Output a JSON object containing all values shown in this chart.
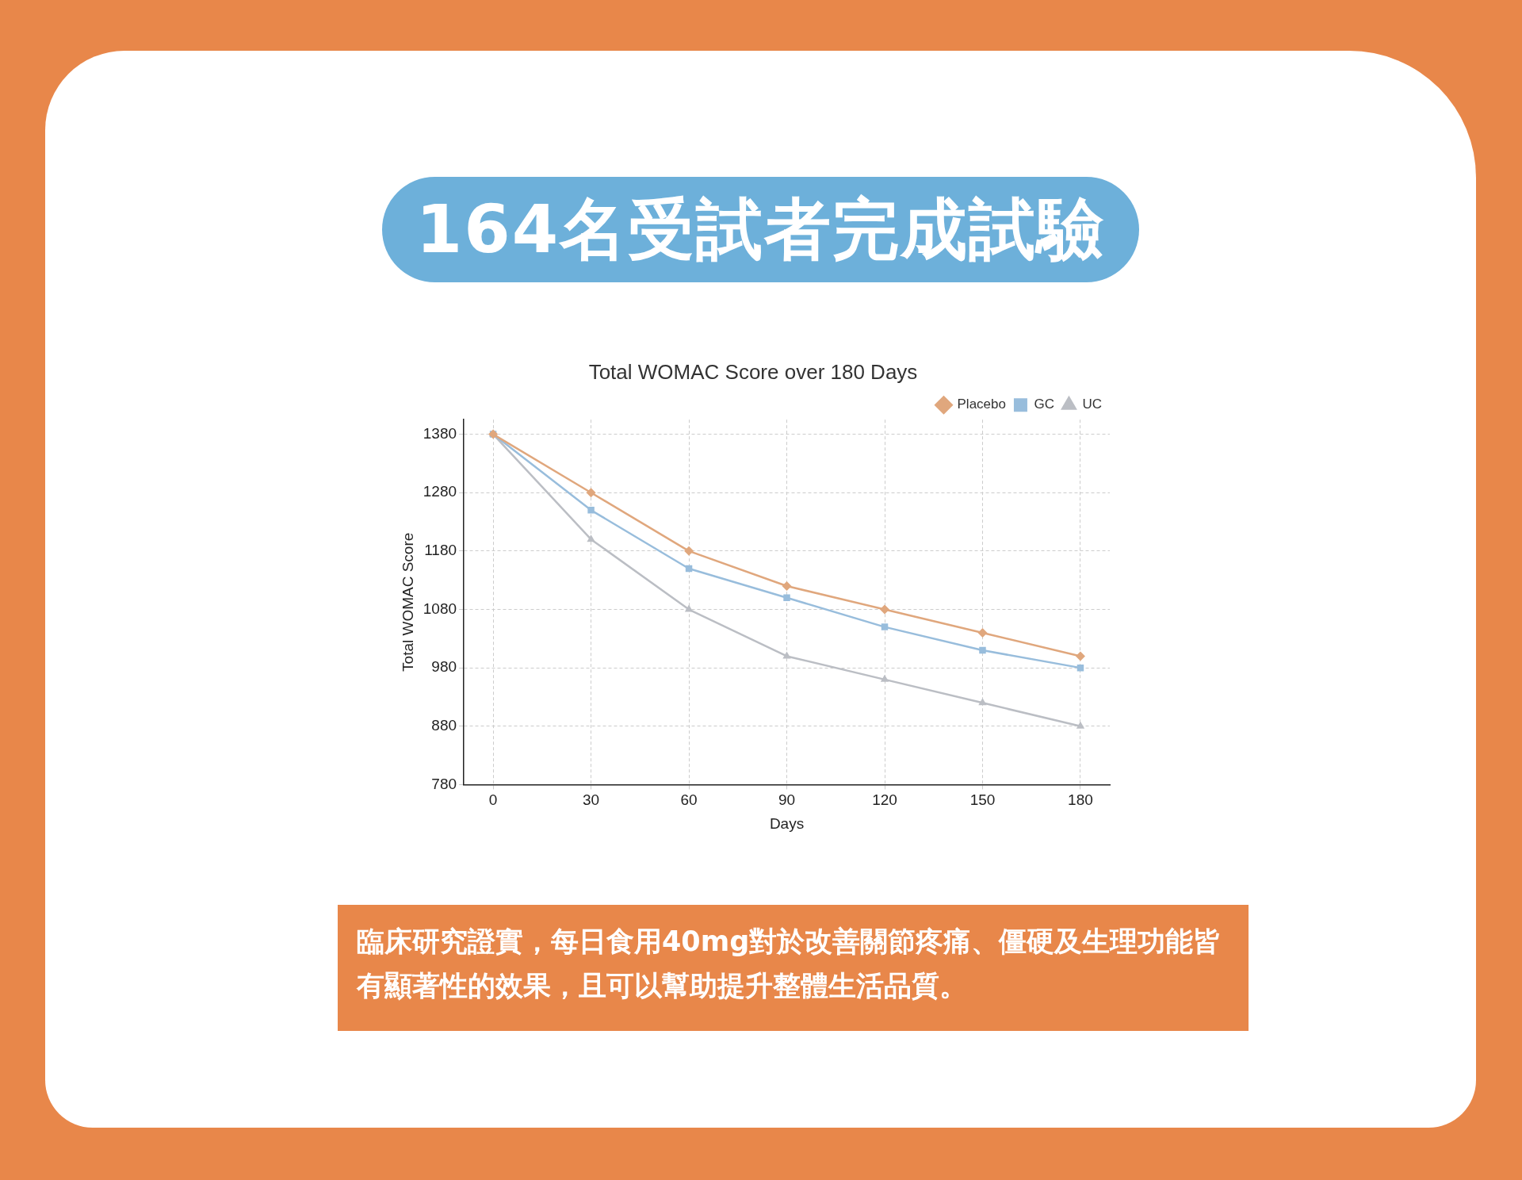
{
  "chart_data": {
    "type": "line",
    "title": "Total WOMAC Score over 180 Days",
    "xlabel": "Days",
    "ylabel": "Total WOMAC Score",
    "annotations": [
      "164名受試者完成試驗",
      "臨床研究證實，每日食用40mg對於改善關節疼痛、僵硬及生理功能皆有顯著性的效果，且可以幫助提升整體生活品質。"
    ],
    "x": [
      0,
      30,
      60,
      90,
      120,
      150,
      180
    ],
    "series": [
      {
        "name": "Placebo",
        "color": "#e0a77d",
        "marker": "diamond",
        "values": [
          1380,
          1280,
          1180,
          1120,
          1080,
          1040,
          1000
        ]
      },
      {
        "name": "GC",
        "color": "#98bddc",
        "marker": "square",
        "values": [
          1380,
          1250,
          1150,
          1100,
          1050,
          1010,
          980
        ]
      },
      {
        "name": "UC",
        "color": "#bbbec4",
        "marker": "triangle",
        "values": [
          1380,
          1200,
          1080,
          1000,
          960,
          920,
          880
        ]
      }
    ],
    "xlim": [
      -9,
      189
    ],
    "xticks": [
      0,
      30,
      60,
      90,
      120,
      150,
      180
    ],
    "ylim": [
      780,
      1405
    ],
    "yticks": [
      780,
      880,
      980,
      1080,
      1180,
      1280,
      1380
    ],
    "grid": true,
    "legend": "top right",
    "line_style": "solid"
  }
}
